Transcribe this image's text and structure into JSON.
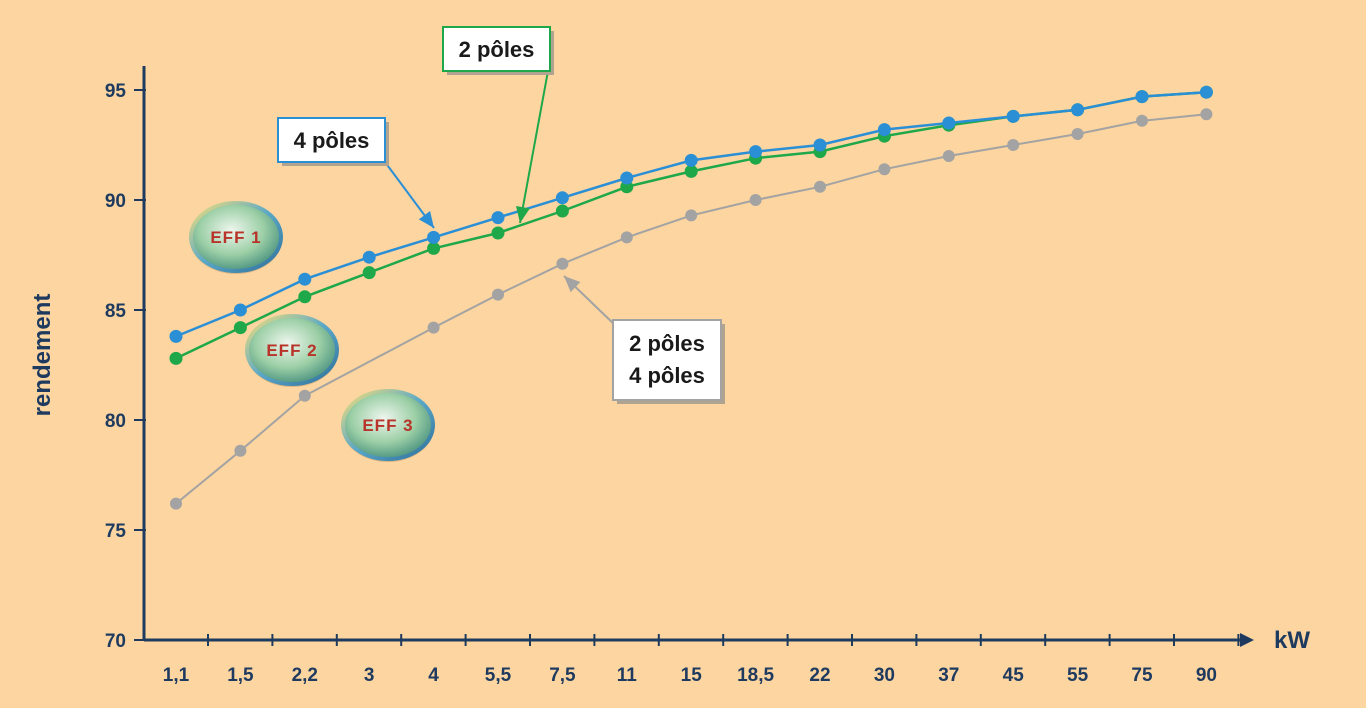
{
  "colors": {
    "background": "#fcd5a0",
    "axis": "#1e3a5f",
    "text": "#1e3a5f",
    "series_4_poles": "#2b8fd6",
    "series_2_poles": "#1ea84a",
    "series_eff3": "#a3a3a3",
    "badge_text": "#b8332a"
  },
  "chart_data": {
    "type": "line",
    "xlabel": "kW",
    "ylabel": "rendement",
    "categories": [
      "1,1",
      "1,5",
      "2,2",
      "3",
      "4",
      "5,5",
      "7,5",
      "11",
      "15",
      "18,5",
      "22",
      "30",
      "37",
      "45",
      "55",
      "75",
      "90"
    ],
    "ylim": [
      70,
      95
    ],
    "yticks": [
      70,
      75,
      80,
      85,
      90,
      95
    ],
    "grid": false,
    "series": [
      {
        "name": "4 pôles",
        "color": "#2b8fd6",
        "values": [
          83.8,
          85.0,
          86.4,
          87.4,
          88.3,
          89.2,
          90.1,
          91.0,
          91.8,
          92.2,
          92.5,
          93.2,
          93.5,
          93.8,
          94.1,
          94.7,
          94.9
        ]
      },
      {
        "name": "2 pôles",
        "color": "#1ea84a",
        "values": [
          82.8,
          84.2,
          85.6,
          86.7,
          87.8,
          88.5,
          89.5,
          90.6,
          91.3,
          91.9,
          92.2,
          92.9,
          93.4,
          93.8,
          94.1,
          94.7,
          94.9
        ]
      },
      {
        "name": "2 pôles 4 pôles",
        "color": "#a3a3a3",
        "values": [
          76.2,
          78.6,
          81.1,
          null,
          84.2,
          85.7,
          87.1,
          88.3,
          89.3,
          90.0,
          90.6,
          91.4,
          92.0,
          92.5,
          93.0,
          93.6,
          93.9
        ]
      }
    ],
    "annotations": [
      {
        "text": "2 pôles",
        "series": "2 pôles"
      },
      {
        "text": "4 pôles",
        "series": "4 pôles"
      },
      {
        "lines": [
          "2 pôles",
          "4 pôles"
        ],
        "series": "2 pôles 4 pôles"
      }
    ],
    "badges": [
      "EFF 1",
      "EFF 2",
      "EFF 3"
    ]
  }
}
